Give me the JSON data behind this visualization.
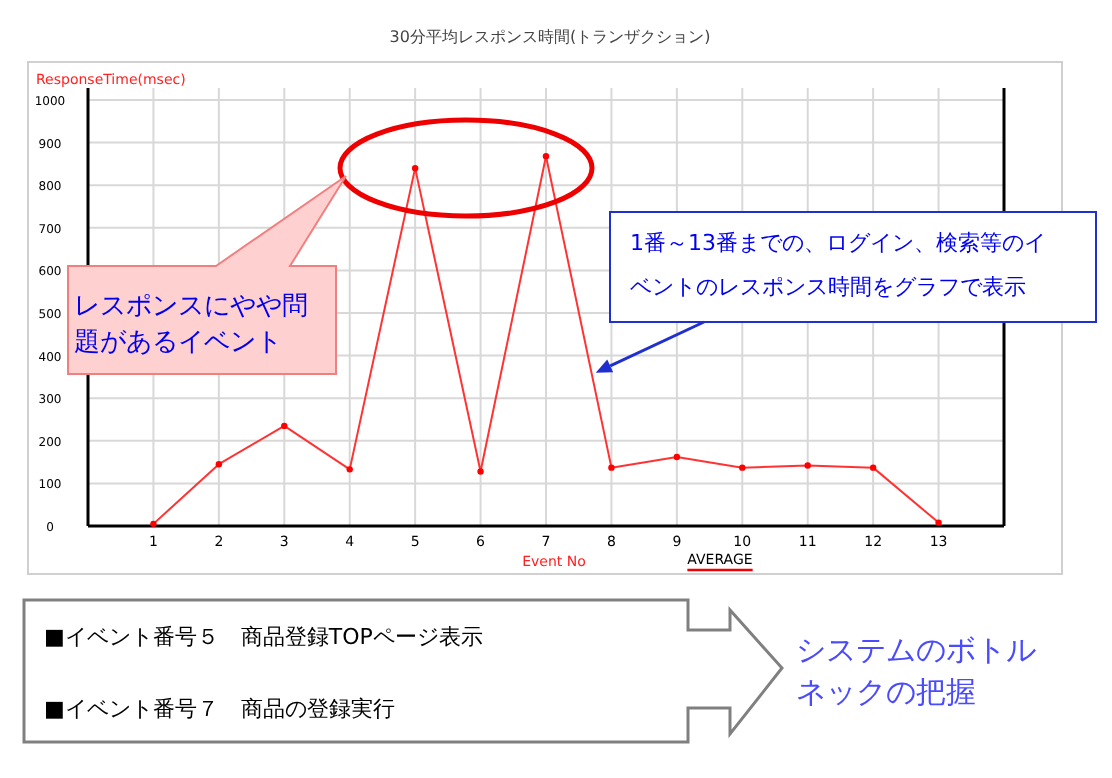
{
  "chart_data": {
    "type": "line",
    "title": "30分平均レスポンス時間(トランザクション)",
    "ylabel": "ResponseTime(msec)",
    "xlabel": "Event No",
    "x": [
      1,
      2,
      3,
      4,
      5,
      6,
      7,
      8,
      9,
      10,
      11,
      12,
      13
    ],
    "series": [
      {
        "color": "#ff3333",
        "values": [
          5,
          145,
          235,
          133,
          840,
          128,
          868,
          137,
          162,
          137,
          142,
          137,
          8
        ]
      }
    ],
    "xlim": [
      0,
      14
    ],
    "xticks": [
      1,
      2,
      3,
      4,
      5,
      6,
      7,
      8,
      9,
      10,
      11,
      12,
      13
    ],
    "ylim": [
      0,
      1000
    ],
    "yticks": [
      0,
      100,
      200,
      300,
      400,
      500,
      600,
      700,
      800,
      900,
      1000
    ],
    "grid": true,
    "marker": "circle",
    "line_style": "solid",
    "annotations": [
      "レスポンスにやや問題があるイベント",
      {
        "text": "1番～13番までの、ログイン、検索等のイベントのレスポンス時間をグラフで表示",
        "x": 7.76,
        "y": 360
      },
      "■イベント番号５　商品登録TOPページ表示",
      "■イベント番号７　商品の登録実行",
      "システムのボトルネックの把握",
      "AVERAGE"
    ]
  }
}
